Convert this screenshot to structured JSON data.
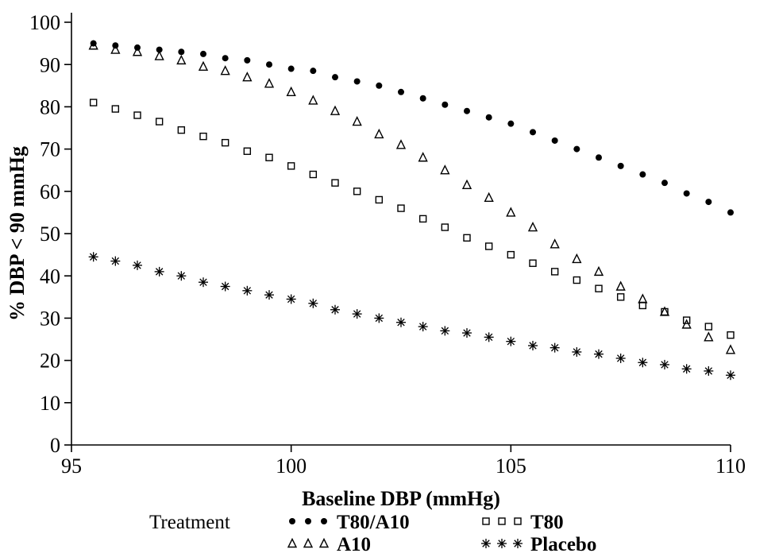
{
  "chart_data": {
    "type": "scatter",
    "title": "",
    "xlabel": "Baseline DBP (mmHg)",
    "ylabel": "% DBP < 90 mmHg",
    "xlim": [
      95,
      110
    ],
    "ylim": [
      0,
      100
    ],
    "xticks": [
      95,
      100,
      105,
      110
    ],
    "yticks": [
      0,
      10,
      20,
      30,
      40,
      50,
      60,
      70,
      80,
      90,
      100
    ],
    "grid": false,
    "legend_title": "Treatment",
    "legend_position": "bottom",
    "marker_color": "#000000",
    "background_color": "#ffffff",
    "x": [
      95.5,
      96,
      96.5,
      97,
      97.5,
      98,
      98.5,
      99,
      99.5,
      100,
      100.5,
      101,
      101.5,
      102,
      102.5,
      103,
      103.5,
      104,
      104.5,
      105,
      105.5,
      106,
      106.5,
      107,
      107.5,
      108,
      108.5,
      109,
      109.5,
      110
    ],
    "series": [
      {
        "name": "T80/A10",
        "marker": "filled-circle",
        "values": [
          95,
          94.5,
          94,
          93.5,
          93,
          92.5,
          91.5,
          91,
          90,
          89,
          88.5,
          87,
          86,
          85,
          83.5,
          82,
          80.5,
          79,
          77.5,
          76,
          74,
          72,
          70,
          68,
          66,
          64,
          62,
          59.5,
          57.5,
          55
        ]
      },
      {
        "name": "T80",
        "marker": "open-square",
        "values": [
          81,
          79.5,
          78,
          76.5,
          74.5,
          73,
          71.5,
          69.5,
          68,
          66,
          64,
          62,
          60,
          58,
          56,
          53.5,
          51.5,
          49,
          47,
          45,
          43,
          41,
          39,
          37,
          35,
          33,
          31.5,
          29.5,
          28,
          26
        ]
      },
      {
        "name": "A10",
        "marker": "open-triangle",
        "values": [
          94.5,
          93.5,
          93,
          92,
          91,
          89.5,
          88.5,
          87,
          85.5,
          83.5,
          81.5,
          79,
          76.5,
          73.5,
          71,
          68,
          65,
          61.5,
          58.5,
          55,
          51.5,
          47.5,
          44,
          41,
          37.5,
          34.5,
          31.5,
          28.5,
          25.5,
          22.5
        ]
      },
      {
        "name": "Placebo",
        "marker": "asterisk",
        "values": [
          44.5,
          43.5,
          42.5,
          41,
          40,
          38.5,
          37.5,
          36.5,
          35.5,
          34.5,
          33.5,
          32,
          31,
          30,
          29,
          28,
          27,
          26.5,
          25.5,
          24.5,
          23.5,
          23,
          22,
          21.5,
          20.5,
          19.5,
          19,
          18,
          17.5,
          16.5
        ]
      }
    ]
  }
}
